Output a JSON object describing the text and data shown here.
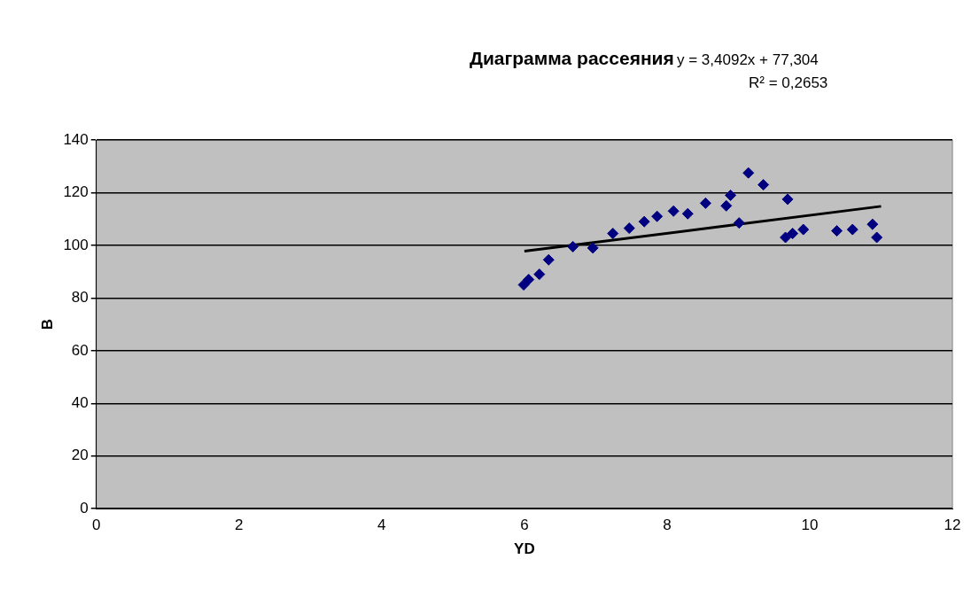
{
  "chart_data": {
    "type": "scatter",
    "title": "Диаграмма рассеяния",
    "xlabel": "YD",
    "ylabel": "B",
    "annotations": [
      "y = 3,4092x + 77,304",
      "R² = 0,2653"
    ],
    "xlim": [
      0,
      12
    ],
    "xticks": [
      0,
      2,
      4,
      6,
      8,
      10,
      12
    ],
    "ylim": [
      0,
      140
    ],
    "yticks": [
      0,
      20,
      40,
      60,
      80,
      100,
      120,
      140
    ],
    "grid": "y",
    "legend": false,
    "marker": "diamond",
    "series": [
      {
        "color": "#000080",
        "x": [
          5.99,
          6.06,
          6.21,
          6.34,
          6.68,
          6.96,
          7.24,
          7.47,
          7.68,
          7.86,
          8.09,
          8.29,
          8.54,
          8.83,
          8.89,
          9.14,
          9.35,
          9.01,
          9.69,
          9.66,
          9.76,
          9.91,
          10.38,
          10.6,
          10.88,
          10.94
        ],
        "values": [
          85,
          87,
          89,
          94.5,
          99.5,
          99,
          104.5,
          106.5,
          109,
          111,
          113,
          112,
          116,
          115,
          119,
          127.5,
          123,
          108.5,
          117.5,
          103,
          104.5,
          106,
          105.5,
          106,
          108,
          103
        ]
      },
      {
        "type": "line",
        "color": "#000000",
        "marker": "none",
        "x": [
          6,
          11
        ],
        "values": [
          97.76,
          114.81
        ]
      }
    ]
  }
}
